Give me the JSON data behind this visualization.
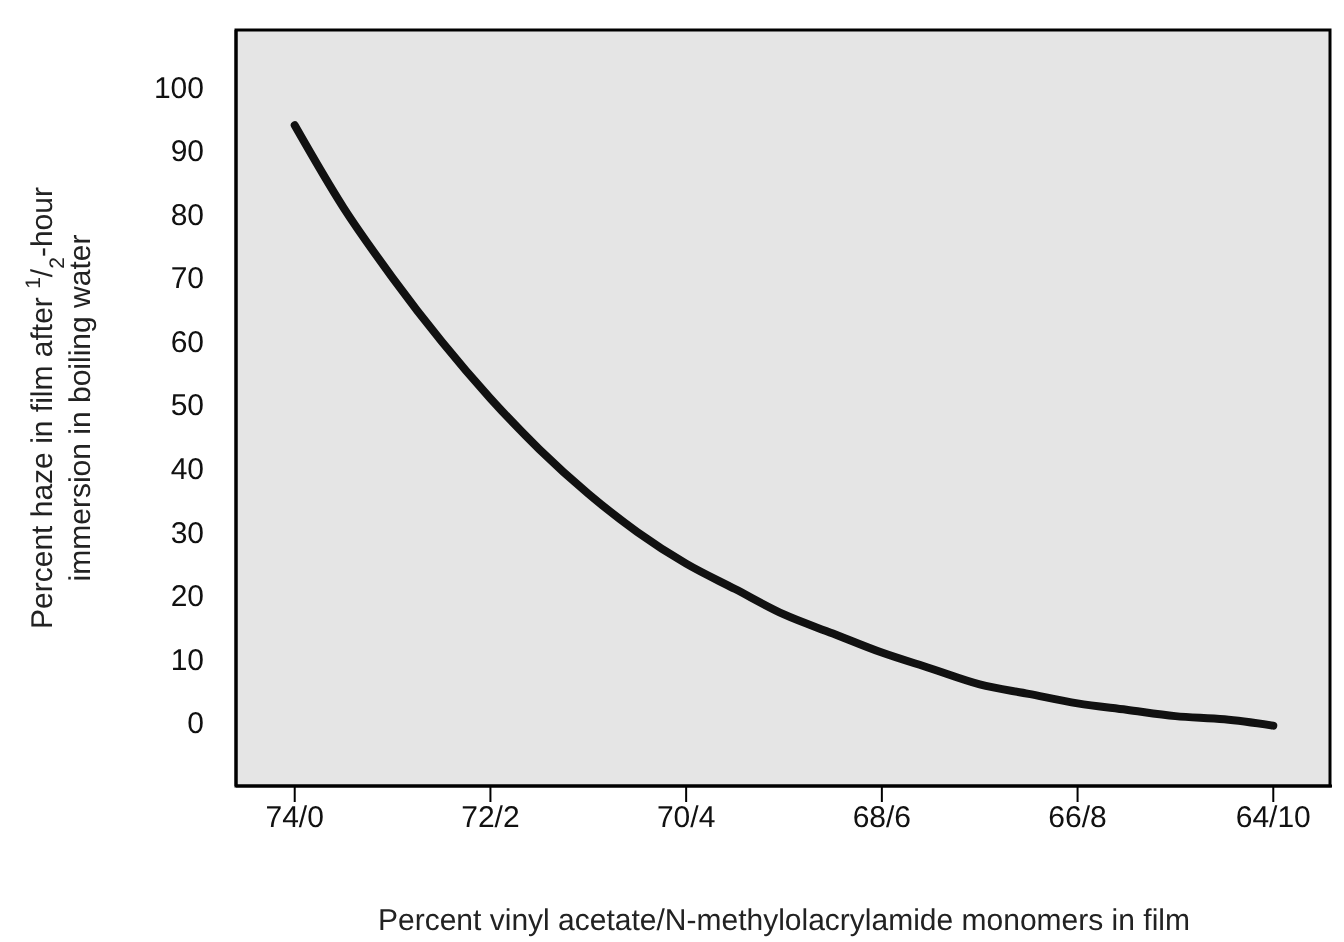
{
  "chart_data": {
    "type": "line",
    "xlabel": "Percent vinyl acetate/N-methylolacrylamide monomers in film",
    "ylabel": "Percent haze in film after $^{1}$/$_{2}$-hour immersion in boiling water",
    "categories": [
      "74/0",
      null,
      null,
      null,
      "72/2",
      null,
      null,
      null,
      "70/4",
      null,
      null,
      null,
      "68/6",
      null,
      null,
      null,
      "66/8",
      null,
      null,
      null,
      "64/10"
    ],
    "series": [
      {
        "color": "#111111",
        "values": [
          94,
          81,
          70,
          60,
          51,
          43,
          36,
          30,
          25,
          21,
          17,
          14,
          11,
          8.5,
          6,
          4.5,
          3,
          2,
          1,
          0.5,
          -0.5
        ]
      }
    ],
    "ylim": [
      -10,
      109
    ],
    "yticks": [
      0,
      10,
      20,
      30,
      40,
      50,
      60,
      70,
      80,
      90,
      100
    ],
    "legend": false,
    "line_style": "solid"
  }
}
